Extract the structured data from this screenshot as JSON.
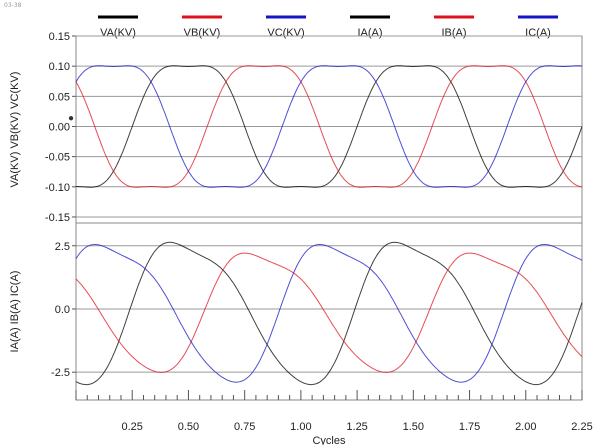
{
  "window": {
    "corner_tag": "03-38"
  },
  "chart_data": {
    "type": "line",
    "x_axis": {
      "label": "Cycles",
      "range": [
        0.0,
        2.25
      ],
      "ticks": [
        0.25,
        0.5,
        0.75,
        1.0,
        1.25,
        1.5,
        1.75,
        2.0,
        2.25
      ],
      "tick_labels": [
        "0.25",
        "0.50",
        "0.75",
        "1.00",
        "1.25",
        "1.50",
        "1.75",
        "2.00",
        "2.25"
      ]
    },
    "legend": {
      "placement": "top",
      "entries": [
        {
          "label": "VA(KV)",
          "color": "#000000"
        },
        {
          "label": "VB(KV)",
          "color": "#e0101e"
        },
        {
          "label": "VC(KV)",
          "color": "#1414c8"
        },
        {
          "label": "IA(A)",
          "color": "#000000"
        },
        {
          "label": "IB(A)",
          "color": "#e0101e"
        },
        {
          "label": "IC(A)",
          "color": "#1414c8"
        }
      ]
    },
    "panels": [
      {
        "ylabel": "VA(KV) VB(KV) VC(KV)",
        "ylim": [
          -0.16,
          0.15
        ],
        "yticks": [
          0.15,
          0.1,
          0.05,
          0.0,
          -0.05,
          -0.1,
          -0.15
        ],
        "ytick_labels": [
          "0.15",
          "0.10",
          "0.05",
          "0.00",
          "-0.05",
          "-0.10",
          "-0.15"
        ],
        "grid": true,
        "series": [
          {
            "name": "VA(KV)",
            "color": "#000000",
            "amplitude": 0.118,
            "phase_deg": -90,
            "wave": "flat-top"
          },
          {
            "name": "VB(KV)",
            "color": "#e0101e",
            "amplitude": 0.118,
            "phase_deg": -210,
            "wave": "flat-top"
          },
          {
            "name": "VC(KV)",
            "color": "#1414c8",
            "amplitude": 0.118,
            "phase_deg": 30,
            "wave": "flat-top"
          }
        ]
      },
      {
        "ylabel": "IA(A) IB(A) IC(A)",
        "ylim": [
          -3.6,
          3.4
        ],
        "yticks": [
          2.5,
          0.0,
          -2.5
        ],
        "ytick_labels": [
          "2.5",
          "0.0",
          "-2.5"
        ],
        "grid": true,
        "series": [
          {
            "name": "IA(A)",
            "color": "#000000",
            "amplitude": 3.1,
            "phase_deg": -90,
            "wave": "skewed"
          },
          {
            "name": "IB(A)",
            "color": "#e0101e",
            "amplitude": 2.6,
            "phase_deg": -210,
            "wave": "skewed"
          },
          {
            "name": "IC(A)",
            "color": "#1414c8",
            "amplitude": 3.0,
            "phase_deg": 30,
            "wave": "skewed"
          }
        ]
      }
    ]
  }
}
